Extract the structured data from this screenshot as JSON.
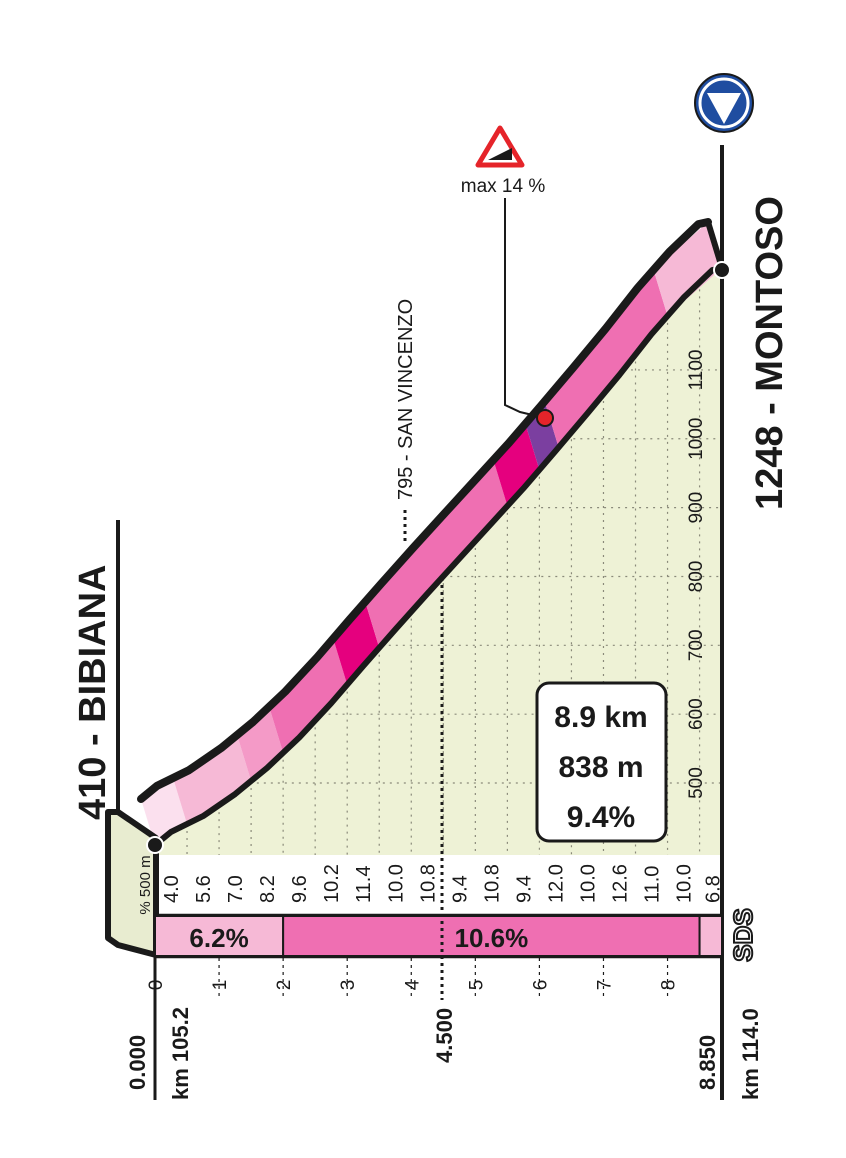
{
  "chart_data": {
    "type": "area",
    "orientation": "rotated-90-ccw",
    "start": {
      "altitude": "410",
      "name": "BIBIANA",
      "label": "410 - BIBIANA",
      "distance": "0.000",
      "km": "km 105.2",
      "altitude_m": 410
    },
    "finish": {
      "altitude": "1248",
      "name": "MONTOSO",
      "label": "1248 - MONTOSO",
      "distance": "8.850",
      "km": "km 114.0",
      "altitude_m": 1248
    },
    "intermediate": {
      "label": "795 - SAN VINCENZO",
      "distance": "4.500",
      "x_km": 4.5,
      "altitude_m": 795
    },
    "max_gradient": {
      "label": "max 14 %",
      "x_km": 6.05,
      "altitude_m": 1030
    },
    "summary": {
      "length": "8.9 km",
      "gain": "838 m",
      "avg_gradient": "9.4%"
    },
    "altitude_axis": {
      "range": [
        410,
        1248
      ],
      "ticks": [
        "500",
        "600",
        "700",
        "800",
        "900",
        "1000",
        "1100"
      ]
    },
    "distance_axis": {
      "range": [
        0,
        8.85
      ],
      "ticks": [
        "0",
        "1",
        "2",
        "3",
        "4",
        "5",
        "6",
        "7",
        "8"
      ]
    },
    "gradient_unit_label": "% 500 m",
    "gradients": [
      {
        "x_km": 0.25,
        "label": "4.0",
        "altitude_m": 429
      },
      {
        "x_km": 0.75,
        "label": "5.6",
        "altitude_m": 452
      },
      {
        "x_km": 1.25,
        "label": "7.0",
        "altitude_m": 484
      },
      {
        "x_km": 1.75,
        "label": "8.2",
        "altitude_m": 522
      },
      {
        "x_km": 2.25,
        "label": "9.6",
        "altitude_m": 566
      },
      {
        "x_km": 2.75,
        "label": "10.2",
        "altitude_m": 616
      },
      {
        "x_km": 3.25,
        "label": "11.4",
        "altitude_m": 670
      },
      {
        "x_km": 3.75,
        "label": "10.0",
        "altitude_m": 723
      },
      {
        "x_km": 4.25,
        "label": "10.8",
        "altitude_m": 775
      },
      {
        "x_km": 4.75,
        "label": "9.4",
        "altitude_m": 826
      },
      {
        "x_km": 5.25,
        "label": "10.8",
        "altitude_m": 877
      },
      {
        "x_km": 5.75,
        "label": "9.4",
        "altitude_m": 928
      },
      {
        "x_km": 6.25,
        "label": "12.0",
        "altitude_m": 982
      },
      {
        "x_km": 6.75,
        "label": "10.0",
        "altitude_m": 1037
      },
      {
        "x_km": 7.25,
        "label": "12.6",
        "altitude_m": 1093
      },
      {
        "x_km": 7.75,
        "label": "11.0",
        "altitude_m": 1152
      },
      {
        "x_km": 8.25,
        "label": "10.0",
        "altitude_m": 1205
      },
      {
        "x_km": 8.7,
        "label": "6.8",
        "altitude_m": 1245
      }
    ],
    "road_segments": [
      {
        "from_km": 0,
        "to_km": 2,
        "label": "6.2%",
        "color": "#f6b9d6"
      },
      {
        "from_km": 2,
        "to_km": 8.5,
        "label": "10.6%",
        "color": "#ef6fb2"
      },
      {
        "from_km": 8.5,
        "to_km": 8.85,
        "label": "",
        "color": "#f6b9d6"
      }
    ],
    "band_colors": [
      {
        "from_km": 0,
        "to_km": 0.5,
        "color": "#fbe0ee"
      },
      {
        "from_km": 0.5,
        "to_km": 1.5,
        "color": "#f6b9d6"
      },
      {
        "from_km": 1.5,
        "to_km": 2.0,
        "color": "#f49ac7"
      },
      {
        "from_km": 2.0,
        "to_km": 3.0,
        "color": "#ef6fb2"
      },
      {
        "from_km": 3.0,
        "to_km": 3.5,
        "color": "#e5007e"
      },
      {
        "from_km": 3.5,
        "to_km": 5.5,
        "color": "#ef6fb2"
      },
      {
        "from_km": 5.5,
        "to_km": 6.0,
        "color": "#e5007e"
      },
      {
        "from_km": 6.0,
        "to_km": 6.3,
        "color": "#7b3fa0"
      },
      {
        "from_km": 6.3,
        "to_km": 8.0,
        "color": "#ef6fb2"
      },
      {
        "from_km": 8.0,
        "to_km": 8.85,
        "color": "#f6b9d6"
      }
    ],
    "sds_label": "SDS"
  },
  "colors": {
    "area_fill": "#eef2d6",
    "outline": "#1a1a1a",
    "finish_marker": "#1f4da0"
  },
  "icons": {
    "finish": "finish-triangle-icon",
    "max_gradient": "steep-gradient-warning-icon"
  }
}
